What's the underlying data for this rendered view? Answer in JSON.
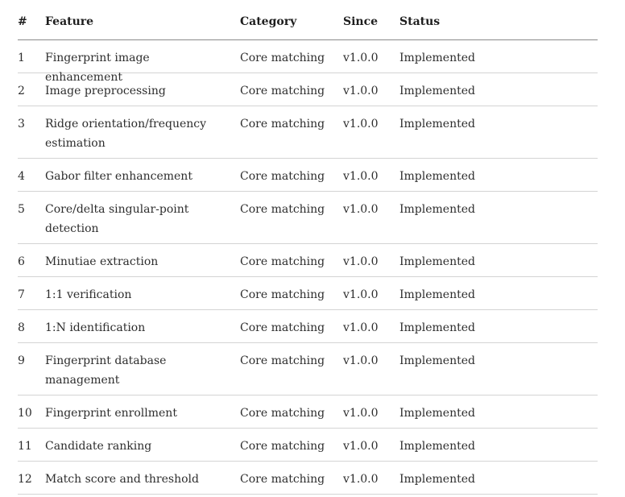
{
  "headers": {
    "num": "#",
    "feature": "Feature",
    "category": "Category",
    "since": "Since",
    "status": "Status"
  },
  "rows": [
    {
      "num": "1",
      "feature": "Fingerprint image enhancement",
      "category": "Core matching",
      "since": "v1.0.0",
      "status": "Implemented"
    },
    {
      "num": "2",
      "feature": "Image preprocessing",
      "category": "Core matching",
      "since": "v1.0.0",
      "status": "Implemented"
    },
    {
      "num": "3",
      "feature": "Ridge orientation/frequency estimation",
      "category": "Core matching",
      "since": "v1.0.0",
      "status": "Implemented"
    },
    {
      "num": "4",
      "feature": "Gabor filter enhancement",
      "category": "Core matching",
      "since": "v1.0.0",
      "status": "Implemented"
    },
    {
      "num": "5",
      "feature": "Core/delta singular-point detection",
      "category": "Core matching",
      "since": "v1.0.0",
      "status": "Implemented"
    },
    {
      "num": "6",
      "feature": "Minutiae extraction",
      "category": "Core matching",
      "since": "v1.0.0",
      "status": "Implemented"
    },
    {
      "num": "7",
      "feature": "1:1 verification",
      "category": "Core matching",
      "since": "v1.0.0",
      "status": "Implemented"
    },
    {
      "num": "8",
      "feature": "1:N identification",
      "category": "Core matching",
      "since": "v1.0.0",
      "status": "Implemented"
    },
    {
      "num": "9",
      "feature": "Fingerprint database management",
      "category": "Core matching",
      "since": "v1.0.0",
      "status": "Implemented"
    },
    {
      "num": "10",
      "feature": "Fingerprint enrollment",
      "category": "Core matching",
      "since": "v1.0.0",
      "status": "Implemented"
    },
    {
      "num": "11",
      "feature": "Candidate ranking",
      "category": "Core matching",
      "since": "v1.0.0",
      "status": "Implemented"
    },
    {
      "num": "12",
      "feature": "Match score and threshold",
      "category": "Core matching",
      "since": "v1.0.0",
      "status": "Implemented"
    }
  ]
}
